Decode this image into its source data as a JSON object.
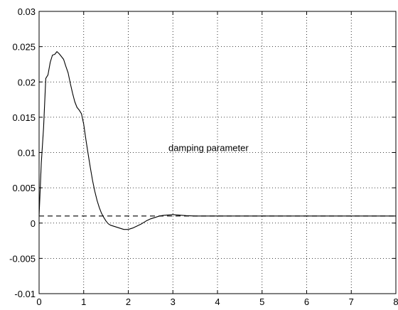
{
  "chart_data": {
    "type": "line",
    "title": "",
    "xlabel": "",
    "ylabel": "",
    "xlim": [
      0,
      8
    ],
    "ylim": [
      -0.01,
      0.03
    ],
    "grid": true,
    "x_ticks": [
      "0",
      "1",
      "2",
      "3",
      "4",
      "5",
      "6",
      "7",
      "8"
    ],
    "y_ticks": [
      "-0.01",
      "-0.005",
      "0",
      "0.005",
      "0.01",
      "0.015",
      "0.02",
      "0.025",
      "0.03"
    ],
    "annotation": "damping parameter",
    "series": [
      {
        "style": "solid",
        "color": "#000000",
        "x": [
          0.0,
          0.05,
          0.1,
          0.15,
          0.2,
          0.25,
          0.3,
          0.35,
          0.4,
          0.45,
          0.5,
          0.55,
          0.6,
          0.65,
          0.7,
          0.75,
          0.8,
          0.85,
          0.9,
          0.95,
          1.0,
          1.05,
          1.1,
          1.15,
          1.2,
          1.25,
          1.3,
          1.35,
          1.4,
          1.45,
          1.5,
          1.55,
          1.6,
          1.65,
          1.7,
          1.8,
          1.9,
          2.0,
          2.1,
          2.2,
          2.3,
          2.4,
          2.5,
          2.6,
          2.7,
          2.8,
          2.9,
          3.0,
          3.1,
          3.2,
          3.3,
          3.5,
          4.0,
          5.0,
          6.0,
          7.0,
          8.0
        ],
        "y": [
          0.001,
          0.0085,
          0.0135,
          0.0205,
          0.021,
          0.0228,
          0.0238,
          0.0239,
          0.0243,
          0.024,
          0.0236,
          0.0232,
          0.0222,
          0.0213,
          0.0198,
          0.0184,
          0.0172,
          0.0164,
          0.016,
          0.0155,
          0.014,
          0.0118,
          0.0098,
          0.0078,
          0.006,
          0.0045,
          0.0032,
          0.0022,
          0.0014,
          0.0008,
          0.0003,
          -0.0001,
          -0.0003,
          -0.0004,
          -0.0005,
          -0.0007,
          -0.0009,
          -0.0009,
          -0.0007,
          -0.0004,
          -0.0001,
          0.0003,
          0.0006,
          0.0008,
          0.001,
          0.0011,
          0.00115,
          0.0012,
          0.00115,
          0.0011,
          0.00105,
          0.001,
          0.001,
          0.001,
          0.001,
          0.001,
          0.001
        ]
      },
      {
        "style": "dashed",
        "color": "#000000",
        "x": [
          0,
          8
        ],
        "y": [
          0.001,
          0.001
        ]
      }
    ]
  }
}
